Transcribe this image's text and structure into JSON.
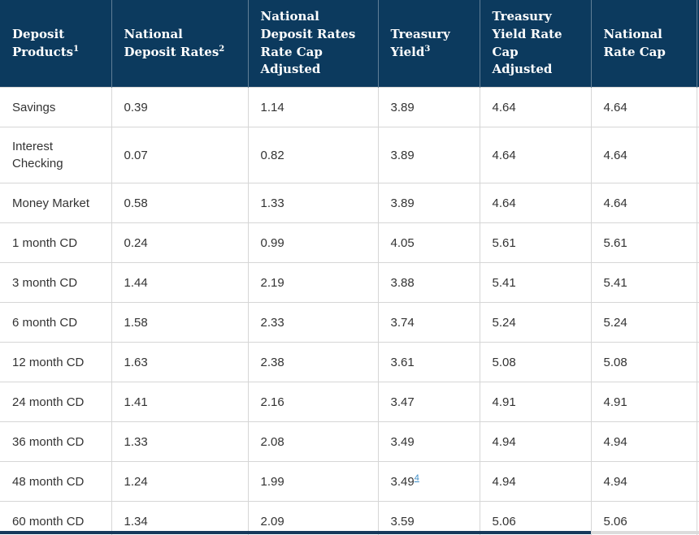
{
  "chart_data": {
    "type": "table",
    "columns": [
      {
        "label": "Deposit Products",
        "sup": "1"
      },
      {
        "label": "National Deposit Rates",
        "sup": "2"
      },
      {
        "label": "National Deposit Rates\nRate Cap Adjusted",
        "sup": ""
      },
      {
        "label": "Treasury Yield",
        "sup": "3"
      },
      {
        "label": "Treasury Yield Rate Cap Adjusted",
        "sup": ""
      },
      {
        "label": "National Rate Cap",
        "sup": ""
      }
    ],
    "rows": [
      {
        "product": "Savings",
        "values": [
          "0.39",
          "1.14",
          "3.89",
          "4.64",
          "4.64"
        ]
      },
      {
        "product": "Interest Checking",
        "values": [
          "0.07",
          "0.82",
          "3.89",
          "4.64",
          "4.64"
        ]
      },
      {
        "product": "Money Market",
        "values": [
          "0.58",
          "1.33",
          "3.89",
          "4.64",
          "4.64"
        ]
      },
      {
        "product": "1 month CD",
        "values": [
          "0.24",
          "0.99",
          "4.05",
          "5.61",
          "5.61"
        ]
      },
      {
        "product": "3 month CD",
        "values": [
          "1.44",
          "2.19",
          "3.88",
          "5.41",
          "5.41"
        ]
      },
      {
        "product": "6 month CD",
        "values": [
          "1.58",
          "2.33",
          "3.74",
          "5.24",
          "5.24"
        ]
      },
      {
        "product": "12 month CD",
        "values": [
          "1.63",
          "2.38",
          "3.61",
          "5.08",
          "5.08"
        ]
      },
      {
        "product": "24 month CD",
        "values": [
          "1.41",
          "2.16",
          "3.47",
          "4.91",
          "4.91"
        ]
      },
      {
        "product": "36 month CD",
        "values": [
          "1.33",
          "2.08",
          "3.49",
          "4.94",
          "4.94"
        ]
      },
      {
        "product": "48 month CD",
        "values": [
          "1.24",
          "1.99",
          "3.49",
          "4.94",
          "4.94"
        ],
        "footnote": {
          "value_index": 2,
          "label": "4"
        }
      },
      {
        "product": "60 month CD",
        "values": [
          "1.34",
          "2.09",
          "3.59",
          "5.06",
          "5.06"
        ]
      }
    ]
  },
  "colors": {
    "header_bg": "#0c3a5e",
    "header_text": "#ffffff",
    "body_text": "#333333",
    "border": "#d6d6d6",
    "footnote_link": "#3f8ec7",
    "scrollbar_thumb": "#16395b",
    "scrollbar_track": "#dcdcdc"
  }
}
